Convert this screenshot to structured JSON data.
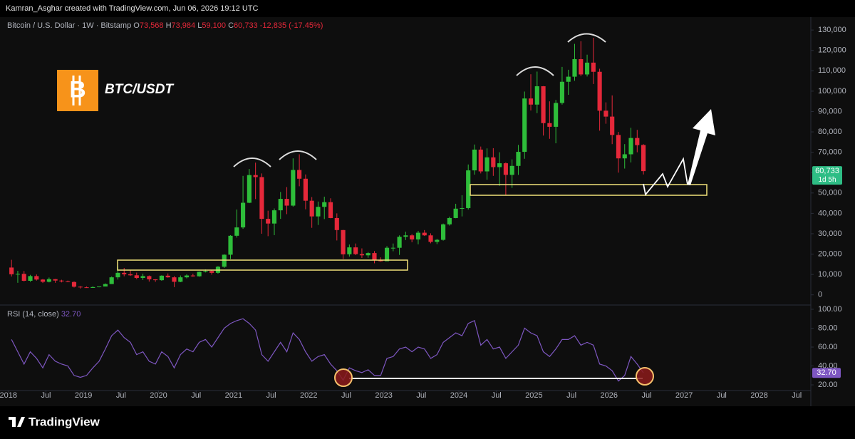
{
  "header": {
    "credit": "Kamran_Asghar created with TradingView.com, Jun 06, 2026 19:12 UTC"
  },
  "legend": {
    "symbol": "Bitcoin / U.S. Dollar · 1W · Bitstamp",
    "o": "O",
    "o_value": "73,568",
    "h": "H",
    "h_value": "73,984",
    "l": "L",
    "l_value": "59,100",
    "c": "C",
    "c_value": "60,733",
    "change": "-12,835 (-17.45%)"
  },
  "badge": {
    "logo": "B",
    "asset": "BTC/USDT"
  },
  "chart_data": [
    {
      "type": "candlestick",
      "up_color": "#2ebd3a",
      "down_color": "#e5283a",
      "price_tag": {
        "value": 60733,
        "label": "60,733"
      },
      "countdown": "1d 5h",
      "ylim": [
        -5000,
        136000
      ],
      "yticks": [
        0,
        {
          "value": 10000,
          "label": "10,000"
        },
        {
          "value": 20000,
          "label": "20,000"
        },
        {
          "value": 30000,
          "label": "30,000"
        },
        {
          "value": 40000,
          "label": "40,000"
        },
        {
          "value": 50000,
          "label": "50,000"
        },
        {
          "value": 60000,
          "label": "60,000"
        },
        {
          "value": 70000,
          "label": "70,000"
        },
        {
          "value": 80000,
          "label": "80,000"
        },
        {
          "value": 90000,
          "label": "90,000"
        },
        {
          "value": 100000,
          "label": "100,000"
        },
        {
          "value": 110000,
          "label": "110,000"
        },
        {
          "value": 120000,
          "label": "120,000"
        },
        {
          "value": 130000,
          "label": "130,000"
        }
      ],
      "xlim": [
        "2017-12",
        "2028-08"
      ],
      "xticks": [
        {
          "value": "2018-01",
          "label": "2018"
        },
        {
          "value": "2018-07",
          "label": "Jul"
        },
        {
          "value": "2019-01",
          "label": "2019"
        },
        {
          "value": "2019-07",
          "label": "Jul"
        },
        {
          "value": "2020-01",
          "label": "2020"
        },
        {
          "value": "2020-07",
          "label": "Jul"
        },
        {
          "value": "2021-01",
          "label": "2021"
        },
        {
          "value": "2021-07",
          "label": "Jul"
        },
        {
          "value": "2022-01",
          "label": "2022"
        },
        {
          "value": "2022-07",
          "label": "Jul"
        },
        {
          "value": "2023-01",
          "label": "2023"
        },
        {
          "value": "2023-07",
          "label": "Jul"
        },
        {
          "value": "2024-01",
          "label": "2024"
        },
        {
          "value": "2024-07",
          "label": "Jul"
        },
        {
          "value": "2025-01",
          "label": "2025"
        },
        {
          "value": "2025-07",
          "label": "Jul"
        },
        {
          "value": "2026-01",
          "label": "2026"
        },
        {
          "value": "2026-07",
          "label": "Jul"
        },
        {
          "value": "2027-01",
          "label": "2027"
        },
        {
          "value": "2027-07",
          "label": "Jul"
        },
        {
          "value": "2028-01",
          "label": "2028"
        },
        {
          "value": "2028-07",
          "label": "Jul"
        }
      ],
      "x": [
        "2018-01",
        "2018-02",
        "2018-03",
        "2018-04",
        "2018-05",
        "2018-06",
        "2018-07",
        "2018-08",
        "2018-09",
        "2018-10",
        "2018-11",
        "2018-12",
        "2019-01",
        "2019-02",
        "2019-03",
        "2019-04",
        "2019-05",
        "2019-06",
        "2019-07",
        "2019-08",
        "2019-09",
        "2019-10",
        "2019-11",
        "2019-12",
        "2020-01",
        "2020-02",
        "2020-03",
        "2020-04",
        "2020-05",
        "2020-06",
        "2020-07",
        "2020-08",
        "2020-09",
        "2020-10",
        "2020-11",
        "2020-12",
        "2021-01",
        "2021-02",
        "2021-03",
        "2021-04",
        "2021-05",
        "2021-06",
        "2021-07",
        "2021-08",
        "2021-09",
        "2021-10",
        "2021-11",
        "2021-12",
        "2022-01",
        "2022-02",
        "2022-03",
        "2022-04",
        "2022-05",
        "2022-06",
        "2022-07",
        "2022-08",
        "2022-09",
        "2022-10",
        "2022-11",
        "2022-12",
        "2023-01",
        "2023-02",
        "2023-03",
        "2023-04",
        "2023-05",
        "2023-06",
        "2023-07",
        "2023-08",
        "2023-09",
        "2023-10",
        "2023-11",
        "2023-12",
        "2024-01",
        "2024-02",
        "2024-03",
        "2024-04",
        "2024-05",
        "2024-06",
        "2024-07",
        "2024-08",
        "2024-09",
        "2024-10",
        "2024-11",
        "2024-12",
        "2025-01",
        "2025-02",
        "2025-03",
        "2025-04",
        "2025-05",
        "2025-06",
        "2025-07",
        "2025-08",
        "2025-09",
        "2025-10",
        "2025-11",
        "2025-12",
        "2026-01",
        "2026-02",
        "2026-03",
        "2026-04",
        "2026-05",
        "2026-06"
      ],
      "ohlc": [
        [
          13400,
          17200,
          9000,
          10100
        ],
        [
          10100,
          11800,
          5900,
          10300
        ],
        [
          10300,
          11700,
          6600,
          6900
        ],
        [
          6900,
          9800,
          6400,
          9200
        ],
        [
          9200,
          10000,
          7000,
          7500
        ],
        [
          7500,
          7800,
          5800,
          6400
        ],
        [
          6400,
          8500,
          6100,
          7700
        ],
        [
          7700,
          7800,
          5900,
          7000
        ],
        [
          7000,
          7400,
          6100,
          6600
        ],
        [
          6600,
          7000,
          6200,
          6300
        ],
        [
          6300,
          6600,
          3600,
          4000
        ],
        [
          4000,
          4300,
          3100,
          3700
        ],
        [
          3700,
          4100,
          3400,
          3400
        ],
        [
          3400,
          4200,
          3400,
          3800
        ],
        [
          3800,
          4100,
          3700,
          4100
        ],
        [
          4100,
          5600,
          4100,
          5300
        ],
        [
          5300,
          9000,
          5300,
          8600
        ],
        [
          8600,
          13900,
          7500,
          10800
        ],
        [
          10800,
          13200,
          9100,
          10100
        ],
        [
          10100,
          12300,
          9300,
          9600
        ],
        [
          9600,
          10900,
          7700,
          8300
        ],
        [
          8300,
          10400,
          7300,
          9200
        ],
        [
          9200,
          9500,
          6500,
          7600
        ],
        [
          7600,
          7700,
          6400,
          7200
        ],
        [
          7200,
          9600,
          6900,
          9400
        ],
        [
          9400,
          10500,
          8400,
          8600
        ],
        [
          8600,
          9200,
          3800,
          6400
        ],
        [
          6400,
          9500,
          6200,
          8600
        ],
        [
          8600,
          10100,
          8100,
          9500
        ],
        [
          9500,
          10400,
          8900,
          9100
        ],
        [
          9100,
          11400,
          8900,
          11300
        ],
        [
          11300,
          12500,
          11000,
          11700
        ],
        [
          11700,
          12100,
          9900,
          10800
        ],
        [
          10800,
          14100,
          10400,
          13800
        ],
        [
          13800,
          19900,
          13200,
          19700
        ],
        [
          19700,
          29300,
          17600,
          29000
        ],
        [
          29000,
          41900,
          28100,
          33100
        ],
        [
          33100,
          58400,
          32400,
          45200
        ],
        [
          45200,
          61800,
          45000,
          58800
        ],
        [
          58800,
          64900,
          47000,
          57800
        ],
        [
          57800,
          59600,
          30000,
          37300
        ],
        [
          37300,
          41300,
          28800,
          35000
        ],
        [
          35000,
          42400,
          29300,
          41500
        ],
        [
          41500,
          50500,
          37300,
          47100
        ],
        [
          47100,
          52900,
          39600,
          43800
        ],
        [
          43800,
          67000,
          43300,
          61300
        ],
        [
          61300,
          69000,
          53300,
          57000
        ],
        [
          57000,
          59100,
          42000,
          46200
        ],
        [
          46200,
          48000,
          32900,
          38500
        ],
        [
          38500,
          45800,
          34300,
          43200
        ],
        [
          43200,
          48200,
          37200,
          45500
        ],
        [
          45500,
          47400,
          37600,
          37700
        ],
        [
          37700,
          40000,
          26700,
          31800
        ],
        [
          31800,
          31900,
          17600,
          19900
        ],
        [
          19900,
          24700,
          18800,
          23300
        ],
        [
          23300,
          25200,
          19500,
          20000
        ],
        [
          20000,
          22800,
          18100,
          19400
        ],
        [
          19400,
          21000,
          18200,
          20500
        ],
        [
          20500,
          21500,
          15500,
          17200
        ],
        [
          17200,
          18400,
          16300,
          16500
        ],
        [
          16500,
          23900,
          16500,
          23100
        ],
        [
          23100,
          25200,
          21400,
          23100
        ],
        [
          23100,
          29200,
          19600,
          28500
        ],
        [
          28500,
          31000,
          26900,
          29200
        ],
        [
          29200,
          29800,
          25800,
          27200
        ],
        [
          27200,
          31400,
          24800,
          30500
        ],
        [
          30500,
          31800,
          28900,
          29200
        ],
        [
          29200,
          30200,
          25300,
          26000
        ],
        [
          26000,
          27500,
          24900,
          27000
        ],
        [
          27000,
          35000,
          26600,
          34600
        ],
        [
          34600,
          38400,
          34000,
          37700
        ],
        [
          37700,
          44700,
          37600,
          42300
        ],
        [
          42300,
          48900,
          38500,
          42600
        ],
        [
          42600,
          64000,
          41900,
          61100
        ],
        [
          61100,
          73800,
          59000,
          71300
        ],
        [
          71300,
          72800,
          59600,
          60600
        ],
        [
          60600,
          71900,
          56500,
          67500
        ],
        [
          67500,
          72000,
          58400,
          62700
        ],
        [
          62700,
          70000,
          53500,
          64600
        ],
        [
          64600,
          65000,
          49000,
          58900
        ],
        [
          58900,
          66500,
          52500,
          63300
        ],
        [
          63300,
          73600,
          58900,
          70200
        ],
        [
          70200,
          99800,
          66800,
          96400
        ],
        [
          96400,
          108300,
          90500,
          93400
        ],
        [
          93400,
          109600,
          89200,
          102400
        ],
        [
          102400,
          102500,
          78200,
          84300
        ],
        [
          84300,
          95000,
          76600,
          82500
        ],
        [
          82500,
          95700,
          74400,
          94200
        ],
        [
          94200,
          111900,
          93400,
          104600
        ],
        [
          104600,
          110500,
          98200,
          107100
        ],
        [
          107100,
          123200,
          105100,
          115700
        ],
        [
          115700,
          124500,
          107300,
          108200
        ],
        [
          108200,
          117900,
          107200,
          114000
        ],
        [
          114000,
          126200,
          103500,
          109500
        ],
        [
          109500,
          111000,
          80600,
          90400
        ],
        [
          90400,
          94500,
          84000,
          87500
        ],
        [
          87500,
          97900,
          74000,
          78500
        ],
        [
          78500,
          80000,
          60000,
          67000
        ],
        [
          67000,
          74000,
          62000,
          69000
        ],
        [
          69000,
          82000,
          65000,
          77000
        ],
        [
          77000,
          81000,
          70000,
          73500
        ],
        [
          73568,
          73984,
          59100,
          60733
        ]
      ]
    },
    {
      "type": "line",
      "title": "RSI (14, close)",
      "last_label": "32.70",
      "color": "#7e57c2",
      "rsi_tag": {
        "value": 32.7,
        "label": "32.70"
      },
      "ylim": [
        14,
        104.5
      ],
      "yticks": [
        {
          "value": 20,
          "label": "20.00"
        },
        {
          "value": 40,
          "label": "40.00"
        },
        {
          "value": 60,
          "label": "60.00"
        },
        {
          "value": 80,
          "label": "80.00"
        },
        {
          "value": 100,
          "label": "100.00"
        }
      ],
      "values": [
        68,
        55,
        42,
        55,
        48,
        38,
        52,
        45,
        42,
        40,
        30,
        28,
        30,
        38,
        45,
        58,
        72,
        78,
        70,
        65,
        52,
        55,
        45,
        42,
        55,
        50,
        38,
        52,
        58,
        55,
        65,
        68,
        60,
        70,
        80,
        85,
        88,
        90,
        85,
        78,
        52,
        45,
        55,
        65,
        55,
        75,
        68,
        55,
        45,
        50,
        52,
        42,
        35,
        25,
        38,
        35,
        33,
        36,
        30,
        30,
        48,
        50,
        58,
        60,
        55,
        60,
        58,
        48,
        52,
        65,
        70,
        75,
        72,
        85,
        88,
        62,
        68,
        58,
        60,
        48,
        55,
        62,
        80,
        75,
        72,
        55,
        50,
        58,
        68,
        68,
        72,
        62,
        65,
        62,
        42,
        40,
        35,
        24,
        30,
        50,
        42,
        32.7
      ]
    }
  ],
  "footer": {
    "brand": "TradingView"
  }
}
